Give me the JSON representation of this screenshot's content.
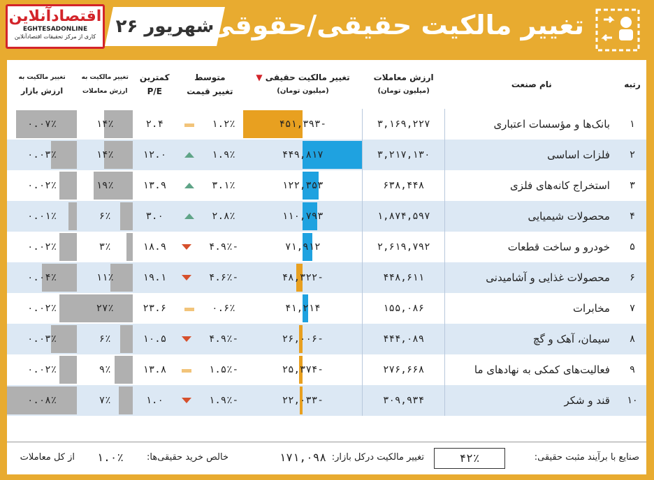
{
  "header": {
    "logo_main": "اقتصادآنلاین",
    "logo_site": "EGHTESADONLINE",
    "logo_tag": "کاری از مرکز تحقیقات اقتصادآنلاین",
    "date": "۲۶ شهریور",
    "title": "تغییر مالکیت حقیقی/حقوقی",
    "icon": "money-transfer-icon",
    "accent_color": "#e8ab30"
  },
  "columns": {
    "rank": "رتبه",
    "industry": "نام صنعت",
    "trade_value": "ارزش معاملات",
    "trade_value_unit": "(میلیون تومان)",
    "ownership_change": "تغییر مالکیت حقیقی",
    "ownership_change_unit": "(میلیون تومان)",
    "avg_price_change_1": "متوسط",
    "avg_price_change_2": "تغییر قیمت",
    "pe_1": "کمترین",
    "pe_2": "P/E",
    "share_of_trades_1": "تغییر مالکیت به",
    "share_of_trades_2": "ارزش معاملات",
    "share_of_market_1": "تغییر مالکیت به",
    "share_of_market_2": "ارزش بازار"
  },
  "rows": [
    {
      "rank": "۱",
      "industry": "بانک‌ها و مؤسسات اعتباری",
      "trade_value": "۳,۱۶۹,۲۲۷",
      "ownership": "-۴۵۱,۳۹۳",
      "ownership_num": -451393,
      "price_change": "۱.۲٪",
      "trend": "flat",
      "pe": "۲.۴",
      "share_trades": "۱۴٪",
      "share_trades_num": 14,
      "share_market": "۰.۰۷٪",
      "share_market_num": 0.07
    },
    {
      "rank": "۲",
      "industry": "فلزات اساسی",
      "trade_value": "۳,۲۱۷,۱۳۰",
      "ownership": "۴۴۹,۸۱۷",
      "ownership_num": 449817,
      "price_change": "۱.۹٪",
      "trend": "up",
      "pe": "۱۲.۰",
      "share_trades": "۱۴٪",
      "share_trades_num": 14,
      "share_market": "۰.۰۳٪",
      "share_market_num": 0.03
    },
    {
      "rank": "۳",
      "industry": "استخراج کانه‌های فلزی",
      "trade_value": "۶۳۸,۴۴۸",
      "ownership": "۱۲۲,۳۵۳",
      "ownership_num": 122353,
      "price_change": "۳.۱٪",
      "trend": "up",
      "pe": "۱۳.۹",
      "share_trades": "۱۹٪",
      "share_trades_num": 19,
      "share_market": "۰.۰۲٪",
      "share_market_num": 0.02
    },
    {
      "rank": "۴",
      "industry": "محصولات شیمیایی",
      "trade_value": "۱,۸۷۴,۵۹۷",
      "ownership": "۱۱۰,۷۹۳",
      "ownership_num": 110793,
      "price_change": "۲.۸٪",
      "trend": "up",
      "pe": "۳.۰",
      "share_trades": "۶٪",
      "share_trades_num": 6,
      "share_market": "۰.۰۱٪",
      "share_market_num": 0.01
    },
    {
      "rank": "۵",
      "industry": "خودرو و ساخت قطعات",
      "trade_value": "۲,۶۱۹,۷۹۲",
      "ownership": "۷۱,۹۱۲",
      "ownership_num": 71912,
      "price_change": "-۴.۹٪",
      "trend": "down",
      "pe": "۱۸.۹",
      "share_trades": "۳٪",
      "share_trades_num": 3,
      "share_market": "۰.۰۲٪",
      "share_market_num": 0.02
    },
    {
      "rank": "۶",
      "industry": "محصولات غذایی و آشامیدنی",
      "trade_value": "۴۴۸,۶۱۱",
      "ownership": "-۴۸,۳۲۲",
      "ownership_num": -48322,
      "price_change": "-۴.۶٪",
      "trend": "down",
      "pe": "۱۹.۱",
      "share_trades": "۱۱٪",
      "share_trades_num": 11,
      "share_market": "۰.۰۴٪",
      "share_market_num": 0.04
    },
    {
      "rank": "۷",
      "industry": "مخابرات",
      "trade_value": "۱۵۵,۰۸۶",
      "ownership": "۴۱,۲۱۴",
      "ownership_num": 41214,
      "price_change": "۰.۶٪",
      "trend": "flat",
      "pe": "۲۳.۶",
      "share_trades": "۲۷٪",
      "share_trades_num": 27,
      "share_market": "۰.۰۲٪",
      "share_market_num": 0.02
    },
    {
      "rank": "۸",
      "industry": "سیمان، آهک و گچ",
      "trade_value": "۴۴۴,۰۸۹",
      "ownership": "-۲۶,۰۰۶",
      "ownership_num": -26006,
      "price_change": "-۴.۹٪",
      "trend": "down",
      "pe": "۱۰.۵",
      "share_trades": "۶٪",
      "share_trades_num": 6,
      "share_market": "۰.۰۳٪",
      "share_market_num": 0.03
    },
    {
      "rank": "۹",
      "industry": "فعالیت‌های کمکی به نهادهای ما",
      "trade_value": "۲۷۶,۶۶۸",
      "ownership": "-۲۵,۳۷۴",
      "ownership_num": -25374,
      "price_change": "-۱.۵٪",
      "trend": "flat",
      "pe": "۱۳.۸",
      "share_trades": "۹٪",
      "share_trades_num": 9,
      "share_market": "۰.۰۲٪",
      "share_market_num": 0.02
    },
    {
      "rank": "۱۰",
      "industry": "قند و شکر",
      "trade_value": "۳۰۹,۹۳۴",
      "ownership": "-۲۲,۰۳۳",
      "ownership_num": -22033,
      "price_change": "-۱.۹٪",
      "trend": "down",
      "pe": "۱.۰",
      "share_trades": "۷٪",
      "share_trades_num": 7,
      "share_market": "۰.۰۸٪",
      "share_market_num": 0.08
    }
  ],
  "footer": {
    "positive_label": "صنایع با برآیند مثبت حقیقی:",
    "positive_value": "۴۲٪",
    "market_change_label": "تغییر مالکیت درکل بازار:",
    "market_change_value": "۱۷۱,۰۹۸",
    "net_buy_label": "خالص خرید حقیقی‌ها:",
    "net_buy_value": "۱.۰٪",
    "net_buy_suffix": "از کل معاملات"
  },
  "colors": {
    "negative": "#e8a020",
    "positive": "#1fa2e0",
    "gray": "#b0b0b0",
    "up": "#5fa487",
    "down": "#d6502c",
    "flat": "#f2c47a"
  }
}
